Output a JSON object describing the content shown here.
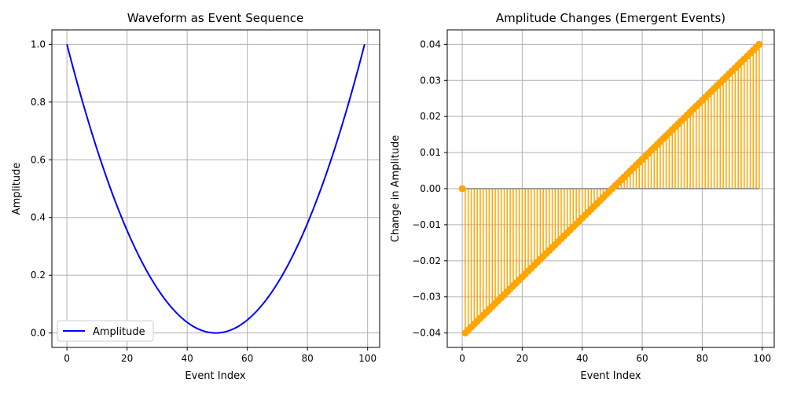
{
  "chart_data": [
    {
      "type": "line",
      "title": "Waveform as Event Sequence",
      "xlabel": "Event Index",
      "ylabel": "Amplitude",
      "xlim": [
        -5,
        104
      ],
      "ylim": [
        -0.05,
        1.05
      ],
      "xticks": [
        0,
        20,
        40,
        60,
        80,
        100
      ],
      "yticks": [
        0.0,
        0.2,
        0.4,
        0.6,
        0.8,
        1.0
      ],
      "ytick_labels": [
        "0.0",
        "0.2",
        "0.4",
        "0.6",
        "0.8",
        "1.0"
      ],
      "grid": true,
      "legend": "lower-left",
      "series": [
        {
          "name": "Amplitude",
          "color": "#0000ff",
          "x": [
            0,
            5,
            10,
            15,
            20,
            25,
            30,
            35,
            40,
            45,
            49.5,
            54,
            59,
            64,
            69,
            74,
            79,
            84,
            89,
            94,
            99
          ],
          "y": [
            1.0,
            0.8082,
            0.6369,
            0.4861,
            0.3558,
            0.246,
            0.1567,
            0.0879,
            0.0397,
            0.0119,
            0.0,
            0.0119,
            0.0397,
            0.0879,
            0.1567,
            0.246,
            0.3558,
            0.4861,
            0.6369,
            0.8082,
            1.0
          ]
        }
      ]
    },
    {
      "type": "stem",
      "title": "Amplitude Changes (Emergent Events)",
      "xlabel": "Event Index",
      "ylabel": "Change in Amplitude",
      "xlim": [
        -5,
        104
      ],
      "ylim": [
        -0.044,
        0.044
      ],
      "xticks": [
        0,
        20,
        40,
        60,
        80,
        100
      ],
      "yticks": [
        -0.04,
        -0.03,
        -0.02,
        -0.01,
        0.0,
        0.01,
        0.02,
        0.03,
        0.04
      ],
      "ytick_labels": [
        "−0.04",
        "−0.03",
        "−0.02",
        "−0.01",
        "0.00",
        "0.01",
        "0.02",
        "0.03",
        "0.04"
      ],
      "grid": true,
      "series": [
        {
          "color": "#ffa500",
          "baseline_color": "#808080",
          "x_start": 0,
          "x_end": 99,
          "note_first": 0.0,
          "y_first_nonzero": -0.0404,
          "y_last": 0.0404,
          "y": []
        }
      ]
    }
  ]
}
